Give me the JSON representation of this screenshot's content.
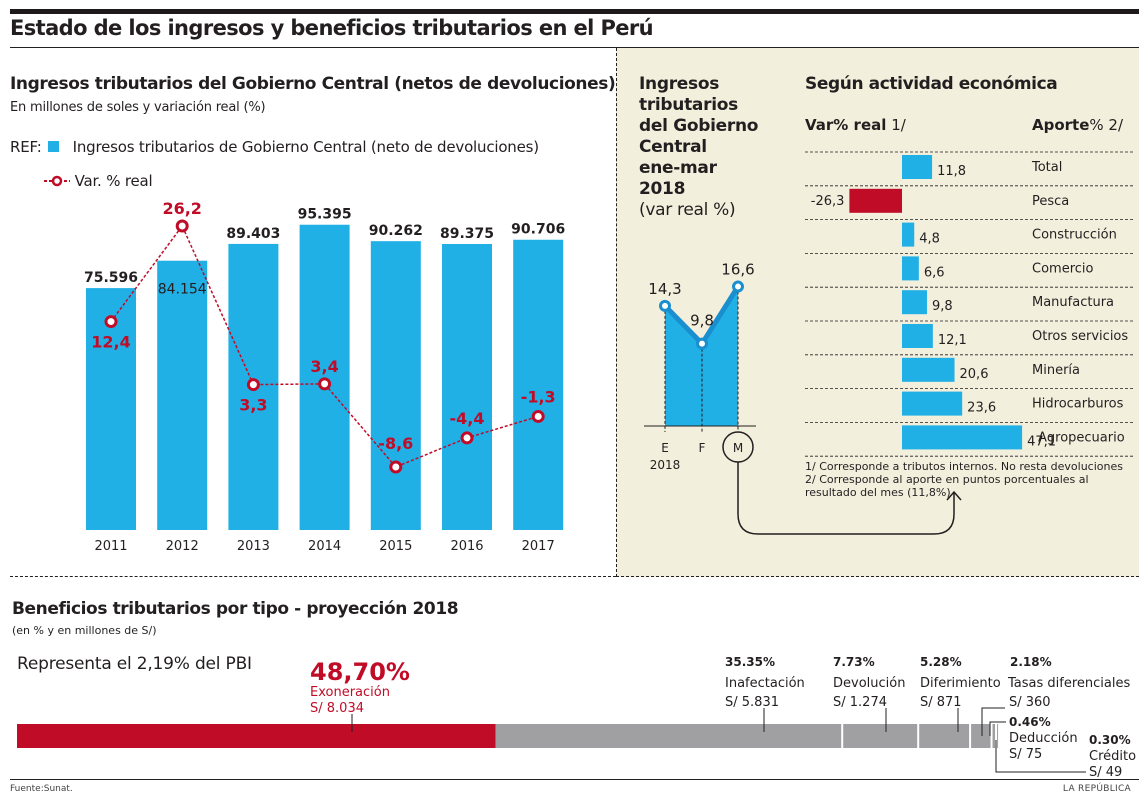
{
  "header": {
    "title": "Estado de los ingresos y beneficios tributarios en el Perú"
  },
  "left_chart": {
    "title": "Ingresos tributarios del Gobierno Central (netos de devoluciones)",
    "subtitle": "En millones de soles  y variación real (%)",
    "legend_ref": "REF:",
    "legend_bar": "Ingresos tributarios de Gobierno Central (neto de devoluciones)",
    "legend_line": "Var. % real"
  },
  "right_panel": {
    "title_lines": [
      "Ingresos",
      "tributarios",
      "del Gobierno",
      "Central",
      "ene-mar",
      "2018"
    ],
    "title_light": "(var real %)",
    "activity_title": "Según actividad económica",
    "col_var": "Var% real",
    "col_var_note": "1/",
    "col_aporte": "Aporte",
    "col_aporte_note": "% 2/",
    "notes": [
      "1/ Corresponde a tributos internos. No resta devoluciones",
      "2/ Corresponde al aporte en puntos porcentuales al resultado del mes (11,8%)"
    ]
  },
  "benefits": {
    "title": "Beneficios tributarios por tipo - proyección 2018",
    "subtitle": "(en % y en millones de S/)",
    "pbi_text": "Representa el 2,19% del PBI"
  },
  "footer": {
    "source": "Fuente:Sunat.",
    "brand": "LA REPÚBLICA"
  },
  "colors": {
    "blue": "#21b0e5",
    "red": "#c10c27",
    "gray": "#a0a0a3",
    "panel_bg": "#f3efdd",
    "dark": "#231f20"
  },
  "chart_data": [
    {
      "type": "bar",
      "title": "Ingresos tributarios del Gobierno Central (netos de devoluciones)",
      "xlabel": "",
      "ylabel": "Millones de soles",
      "categories": [
        "2011",
        "2012",
        "2013",
        "2014",
        "2015",
        "2016",
        "2017"
      ],
      "series": [
        {
          "name": "Ingresos tributarios de Gobierno Central (neto de devoluciones)",
          "type": "bar",
          "values": [
            75596,
            84154,
            89403,
            95395,
            90262,
            89375,
            90706
          ],
          "labels": [
            "75.596",
            "84.154",
            "89.403",
            "95.395",
            "90.262",
            "89.375",
            "90.706"
          ]
        },
        {
          "name": "Var. % real",
          "type": "line",
          "values": [
            12.4,
            26.2,
            3.3,
            3.4,
            -8.6,
            -4.4,
            -1.3
          ],
          "labels": [
            "12,4",
            "26,2",
            "3,3",
            "3,4",
            "-8,6",
            "-4,4",
            "-1,3"
          ]
        }
      ],
      "grid": false
    },
    {
      "type": "area",
      "title": "Ingresos tributarios del Gobierno Central ene-mar 2018 (var real %)",
      "categories": [
        "E",
        "F",
        "M"
      ],
      "x_caption": "2018",
      "highlight": "M",
      "values": [
        14.3,
        9.8,
        16.6
      ],
      "labels": [
        "14,3",
        "9,8",
        "16,6"
      ]
    },
    {
      "type": "bar",
      "title": "Según actividad económica",
      "orientation": "horizontal",
      "categories": [
        "Total",
        "Pesca",
        "Construcción",
        "Comercio",
        "Manufactura",
        "Otros servicios",
        "Minería",
        "Hidrocarburos",
        "Agropecuario"
      ],
      "values": [
        11.8,
        -26.3,
        4.8,
        6.6,
        9.8,
        12.1,
        20.6,
        23.6,
        47.1
      ],
      "labels": [
        "11,8",
        "-26,3",
        "4,8",
        "6,6",
        "9,8",
        "12,1",
        "20,6",
        "23,6",
        "47,1"
      ]
    },
    {
      "type": "bar",
      "title": "Beneficios tributarios por tipo - proyección 2018",
      "orientation": "stacked-horizontal",
      "categories": [
        "Exoneración",
        "Inafectación",
        "Devolución",
        "Diferimiento",
        "Tasas diferenciales",
        "Deducción",
        "Crédito"
      ],
      "percent": [
        48.7,
        35.35,
        7.73,
        5.28,
        2.18,
        0.46,
        0.3
      ],
      "percent_labels": [
        "48,70%",
        "35.35%",
        "7.73%",
        "5.28%",
        "2.18%",
        "0.46%",
        "0.30%"
      ],
      "amounts": [
        8034,
        5831,
        1274,
        871,
        360,
        75,
        49
      ],
      "amount_labels": [
        "S/ 8.034",
        "S/ 5.831",
        "S/ 1.274",
        "S/ 871",
        "S/ 360",
        "S/ 75",
        "S/ 49"
      ]
    }
  ]
}
